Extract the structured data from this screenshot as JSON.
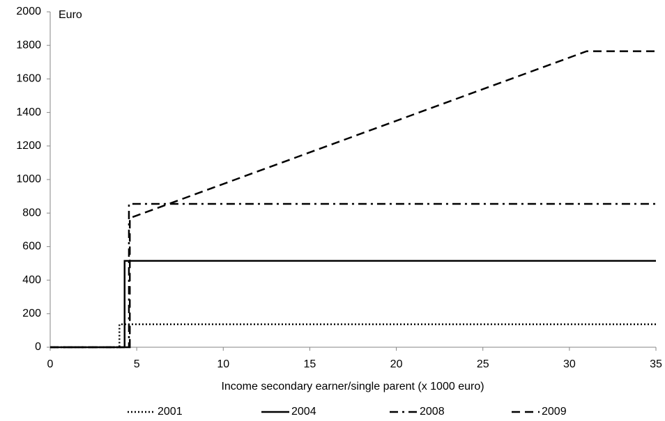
{
  "chart_data": {
    "type": "line",
    "annotation": "Euro",
    "x_label": "Income secondary earner/single parent (x 1000 euro)",
    "xlim": [
      0,
      35
    ],
    "xticks": [
      0,
      5,
      10,
      15,
      20,
      25,
      30,
      35
    ],
    "ylim": [
      0,
      2000
    ],
    "yticks": [
      0,
      200,
      400,
      600,
      800,
      1000,
      1200,
      1400,
      1600,
      1800,
      2000
    ],
    "grid": false,
    "legend": "bottom",
    "series": [
      {
        "name": "2001",
        "color": "#000000",
        "line_style": "dotted",
        "x": [
          0,
          4,
          4,
          35
        ],
        "values": [
          0,
          0,
          137,
          137
        ]
      },
      {
        "name": "2004",
        "color": "#000000",
        "line_style": "solid",
        "x": [
          0,
          4.3,
          4.3,
          35
        ],
        "values": [
          0,
          0,
          515,
          515
        ]
      },
      {
        "name": "2008",
        "color": "#000000",
        "line_style": "dashdot",
        "x": [
          0,
          4.55,
          4.55,
          35
        ],
        "values": [
          0,
          0,
          855,
          855
        ]
      },
      {
        "name": "2009",
        "color": "#000000",
        "line_style": "dashed",
        "x": [
          0,
          4.6,
          4.6,
          31,
          35
        ],
        "values": [
          0,
          0,
          770,
          1765,
          1765
        ]
      }
    ]
  }
}
